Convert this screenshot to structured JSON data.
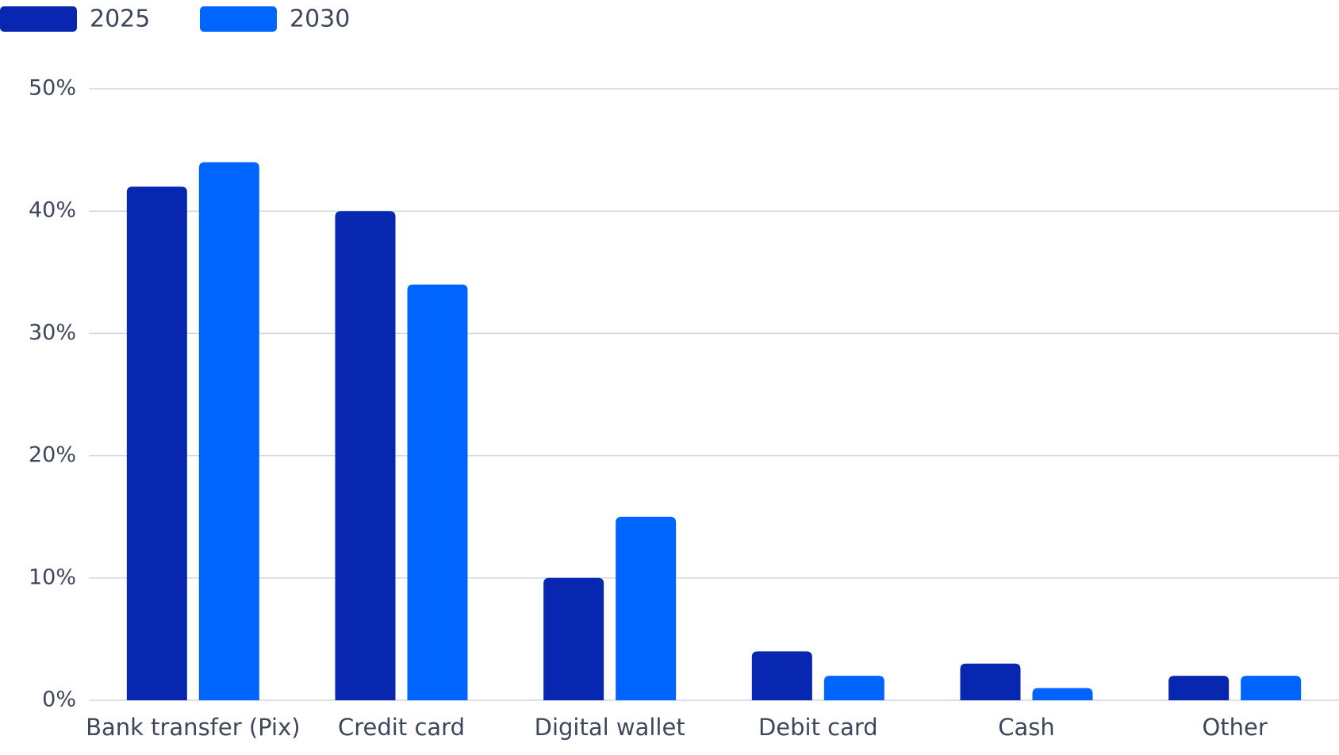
{
  "chart_data": {
    "type": "bar",
    "title": "",
    "xlabel": "",
    "ylabel": "",
    "categories": [
      "Bank transfer (Pix)",
      "Credit card",
      "Digital wallet",
      "Debit card",
      "Cash",
      "Other"
    ],
    "series": [
      {
        "name": "2025",
        "color": "#0727B1",
        "values": [
          42,
          40,
          10,
          4,
          3,
          2
        ]
      },
      {
        "name": "2030",
        "color": "#0064FF",
        "values": [
          44,
          34,
          15,
          2,
          1,
          2
        ]
      }
    ],
    "ylim": [
      0,
      50
    ],
    "yticks": [
      0,
      10,
      20,
      30,
      40,
      50
    ],
    "ytick_labels": [
      "0%",
      "10%",
      "20%",
      "30%",
      "40%",
      "50%"
    ],
    "grid": true,
    "legend_position": "top-left",
    "colors": {
      "grid": "#D3D5DC",
      "axis_text": "#3D465A",
      "legend_text": "#3D465A"
    }
  }
}
